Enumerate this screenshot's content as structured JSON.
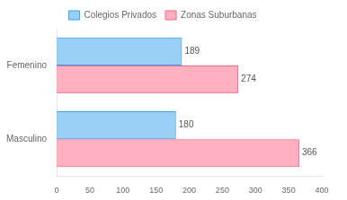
{
  "chart_data": {
    "type": "bar",
    "orientation": "horizontal",
    "categories": [
      "Masculino",
      "Femenino"
    ],
    "series": [
      {
        "name": "Colegios Privados",
        "values": [
          180,
          189
        ]
      },
      {
        "name": "Zonas Suburbanas",
        "values": [
          366,
          274
        ]
      }
    ],
    "xlim": [
      0,
      400
    ],
    "xticks": [
      0,
      50,
      100,
      150,
      200,
      250,
      300,
      350,
      400
    ],
    "grid": false,
    "legend": "top",
    "data_labels": true
  }
}
